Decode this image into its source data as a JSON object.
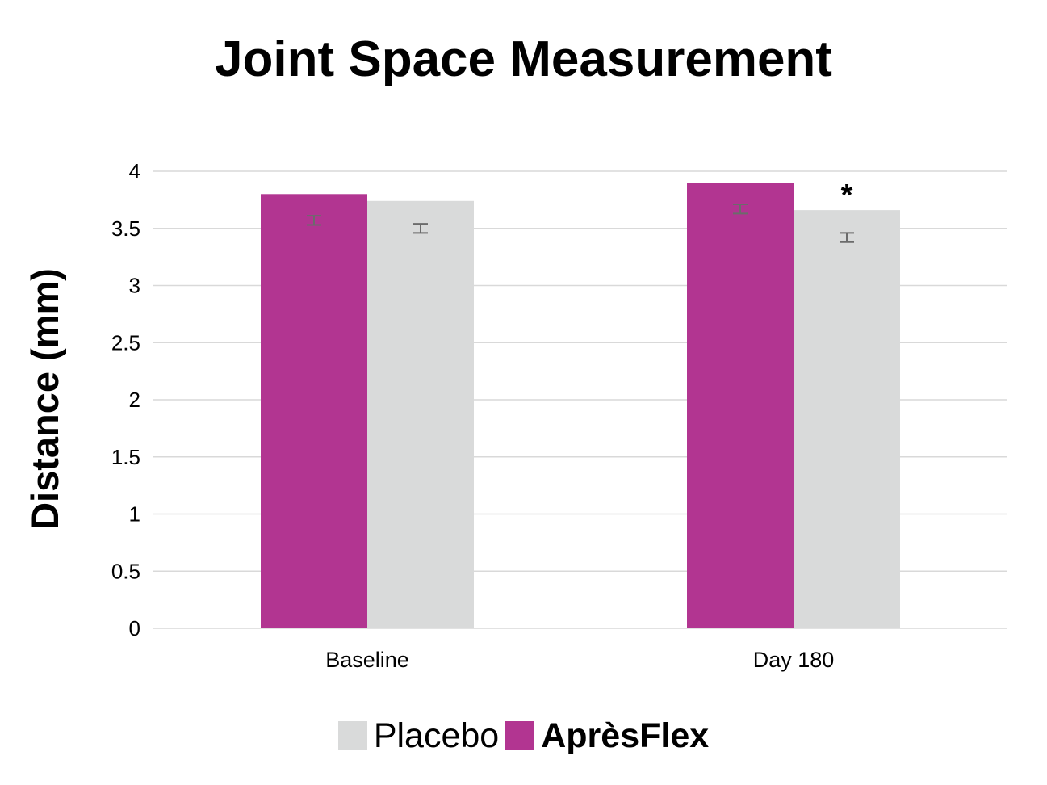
{
  "chart_data": {
    "type": "bar",
    "title": "Joint Space Measurement",
    "ylabel": "Distance (mm)",
    "xlabel": "",
    "categories": [
      "Baseline",
      "Day 180"
    ],
    "ylim": [
      0,
      4
    ],
    "yticks": [
      "0",
      "0.5",
      "1",
      "1.5",
      "2",
      "2.5",
      "3",
      "3.5",
      "4"
    ],
    "grid": true,
    "legend_placement": "bottom",
    "series": [
      {
        "name": "AprèsFlex",
        "color": "#b23591",
        "values": [
          3.8,
          3.9
        ],
        "error_center": [
          3.57,
          3.67
        ],
        "error": [
          0.04,
          0.04
        ]
      },
      {
        "name": "Placebo",
        "color": "#d9dada",
        "values": [
          3.74,
          3.66
        ],
        "error_center": [
          3.5,
          3.42
        ],
        "error": [
          0.04,
          0.04
        ]
      }
    ],
    "annotations": [
      {
        "text": "*",
        "category": "Day 180",
        "series": "Placebo"
      }
    ],
    "legend": [
      {
        "label": "Placebo",
        "color": "#d9dada",
        "bold": false
      },
      {
        "label": "AprèsFlex",
        "color": "#b23591",
        "bold": true
      }
    ]
  }
}
